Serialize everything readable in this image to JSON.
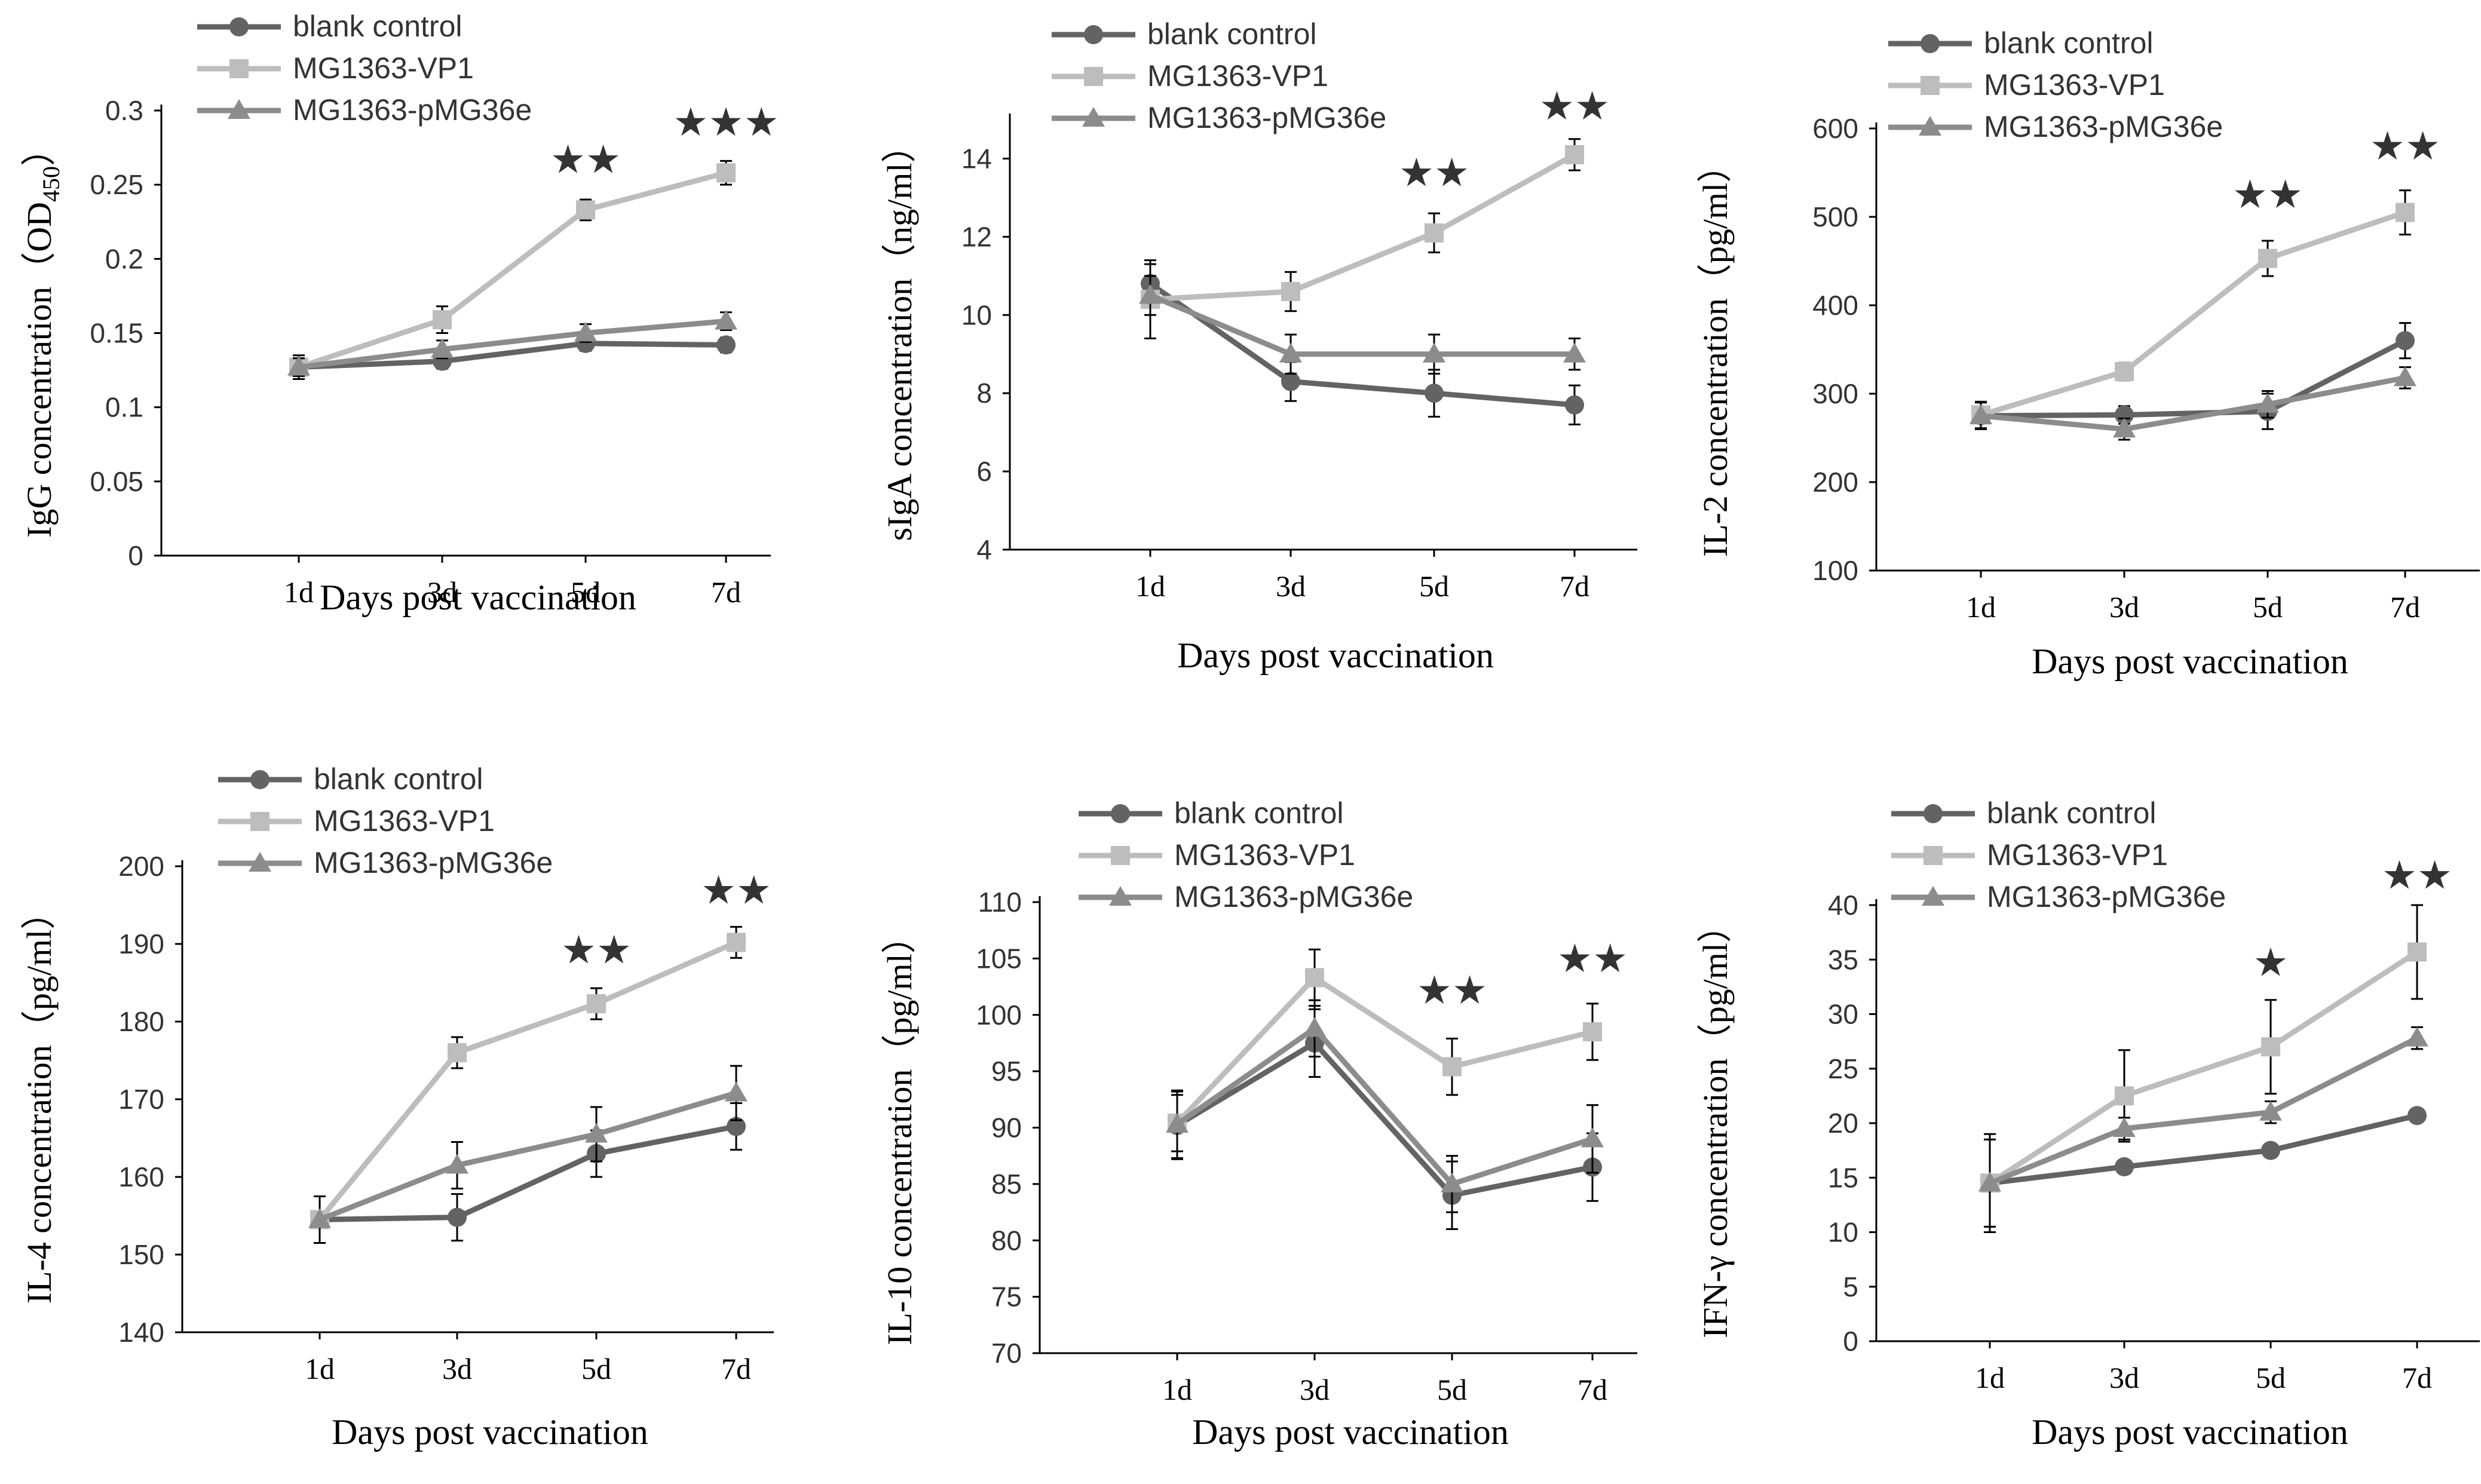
{
  "series_colors": {
    "blank control": "#636363",
    "MG1363-VP1": "#bdbdbd",
    "MG1363-pMG36e": "#8c8c8c"
  },
  "chart_data": [
    {
      "type": "line",
      "categories": [
        "1d",
        "3d",
        "5d",
        "7d"
      ],
      "xlabel": "Days post vaccination",
      "ylabel": "IgG concentration（OD",
      "ylabel_sub": "450",
      "ylabel_end": "）",
      "ylim": [
        0,
        0.3
      ],
      "yticks": [
        0,
        0.05,
        0.1,
        0.15,
        0.2,
        0.25,
        0.3
      ],
      "ytick_labels": [
        "0",
        "0.05",
        "0.1",
        "0.15",
        "0.2",
        "0.25",
        "0.3"
      ],
      "legend": [
        "blank control",
        "MG1363-VP1",
        "MG1363-pMG36e"
      ],
      "series": [
        {
          "name": "blank control",
          "marker": "circle",
          "values": [
            0.127,
            0.131,
            0.143,
            0.142
          ],
          "errors": [
            0.008,
            0.005,
            0.005,
            0.005
          ]
        },
        {
          "name": "MG1363-VP1",
          "marker": "square",
          "values": [
            0.127,
            0.159,
            0.233,
            0.258
          ],
          "errors": [
            0.006,
            0.009,
            0.007,
            0.008
          ]
        },
        {
          "name": "MG1363-pMG36e",
          "marker": "triangle",
          "values": [
            0.127,
            0.139,
            0.15,
            0.158
          ],
          "errors": [
            0.006,
            0.006,
            0.006,
            0.006
          ]
        }
      ],
      "annotations": [
        {
          "category": "5d",
          "text": "★★",
          "y": 0.258
        },
        {
          "category": "7d",
          "text": "★★★",
          "y": 0.283
        }
      ]
    },
    {
      "type": "line",
      "categories": [
        "1d",
        "3d",
        "5d",
        "7d"
      ],
      "xlabel": "Days post vaccination",
      "ylabel": "sIgA concentration（ng/ml）",
      "ylim": [
        4,
        15
      ],
      "yticks": [
        4,
        6,
        8,
        10,
        12,
        14
      ],
      "ytick_labels": [
        "4",
        "6",
        "8",
        "10",
        "12",
        "14"
      ],
      "legend": [
        "blank control",
        "MG1363-VP1",
        "MG1363-pMG36e"
      ],
      "series": [
        {
          "name": "blank control",
          "marker": "circle",
          "values": [
            10.8,
            8.3,
            8.0,
            7.7
          ],
          "errors": [
            0.5,
            0.5,
            0.6,
            0.5
          ]
        },
        {
          "name": "MG1363-VP1",
          "marker": "square",
          "values": [
            10.4,
            10.6,
            12.1,
            14.1
          ],
          "errors": [
            1.0,
            0.5,
            0.5,
            0.4
          ]
        },
        {
          "name": "MG1363-pMG36e",
          "marker": "triangle",
          "values": [
            10.5,
            9.0,
            9.0,
            9.0
          ],
          "errors": [
            0.5,
            0.5,
            0.5,
            0.4
          ]
        }
      ],
      "annotations": [
        {
          "category": "5d",
          "text": "★★",
          "y": 13.3
        },
        {
          "category": "7d",
          "text": "★★",
          "y": 15.0
        }
      ]
    },
    {
      "type": "line",
      "categories": [
        "1d",
        "3d",
        "5d",
        "7d"
      ],
      "xlabel": "Days post vaccination",
      "ylabel": "IL-2 concentration（pg/ml）",
      "ylim": [
        100,
        600
      ],
      "yticks": [
        100,
        200,
        300,
        400,
        500,
        600
      ],
      "ytick_labels": [
        "100",
        "200",
        "300",
        "400",
        "500",
        "600"
      ],
      "legend": [
        "blank control",
        "MG1363-VP1",
        "MG1363-pMG36e"
      ],
      "series": [
        {
          "name": "blank control",
          "marker": "circle",
          "values": [
            275,
            276,
            280,
            360
          ],
          "errors": [
            15,
            10,
            20,
            20
          ]
        },
        {
          "name": "MG1363-VP1",
          "marker": "square",
          "values": [
            276,
            325,
            453,
            505
          ],
          "errors": [
            15,
            10,
            20,
            25
          ]
        },
        {
          "name": "MG1363-pMG36e",
          "marker": "triangle",
          "values": [
            275,
            260,
            288,
            318
          ],
          "errors": [
            15,
            12,
            15,
            12
          ]
        }
      ],
      "annotations": [
        {
          "category": "5d",
          "text": "★★",
          "y": 510
        },
        {
          "category": "7d",
          "text": "★★",
          "y": 565
        }
      ]
    },
    {
      "type": "line",
      "categories": [
        "1d",
        "3d",
        "5d",
        "7d"
      ],
      "xlabel": "Days post vaccination",
      "ylabel": "IL-4 concentration（pg/ml）",
      "ylim": [
        140,
        200
      ],
      "yticks": [
        140,
        150,
        160,
        170,
        180,
        190,
        200
      ],
      "ytick_labels": [
        "140",
        "150",
        "160",
        "170",
        "180",
        "190",
        "200"
      ],
      "legend": [
        "blank control",
        "MG1363-VP1",
        "MG1363-pMG36e"
      ],
      "series": [
        {
          "name": "blank control",
          "marker": "circle",
          "values": [
            154.5,
            154.8,
            163.0,
            166.5
          ],
          "errors": [
            3.0,
            3.0,
            3.0,
            3.0
          ]
        },
        {
          "name": "MG1363-VP1",
          "marker": "square",
          "values": [
            154.5,
            176.0,
            182.3,
            190.2
          ],
          "errors": [
            3.0,
            2.0,
            2.0,
            2.0
          ]
        },
        {
          "name": "MG1363-pMG36e",
          "marker": "triangle",
          "values": [
            154.5,
            161.5,
            165.5,
            170.8
          ],
          "errors": [
            3.0,
            3.0,
            3.5,
            3.5
          ]
        }
      ],
      "annotations": [
        {
          "category": "5d",
          "text": "★★",
          "y": 187.5
        },
        {
          "category": "7d",
          "text": "★★",
          "y": 195.2
        }
      ]
    },
    {
      "type": "line",
      "categories": [
        "1d",
        "3d",
        "5d",
        "7d"
      ],
      "xlabel": "Days post vaccination",
      "ylabel": "IL-10 concentration（pg/ml）",
      "ylim": [
        70,
        110
      ],
      "yticks": [
        70,
        75,
        80,
        85,
        90,
        95,
        100,
        105,
        110
      ],
      "ytick_labels": [
        "70",
        "75",
        "80",
        "85",
        "90",
        "95",
        "100",
        "105",
        "110"
      ],
      "legend": [
        "blank control",
        "MG1363-VP1",
        "MG1363-pMG36e"
      ],
      "series": [
        {
          "name": "blank control",
          "marker": "circle",
          "values": [
            90.2,
            97.5,
            84.0,
            86.5
          ],
          "errors": [
            3.0,
            3.0,
            3.0,
            3.0
          ]
        },
        {
          "name": "MG1363-VP1",
          "marker": "square",
          "values": [
            90.4,
            103.3,
            95.4,
            98.5
          ],
          "errors": [
            2.5,
            2.5,
            2.5,
            2.5
          ]
        },
        {
          "name": "MG1363-pMG36e",
          "marker": "triangle",
          "values": [
            90.3,
            98.8,
            85.0,
            89.0
          ],
          "errors": [
            3.0,
            2.5,
            2.5,
            3.0
          ]
        }
      ],
      "annotations": [
        {
          "category": "5d",
          "text": "★★",
          "y": 101.0
        },
        {
          "category": "7d",
          "text": "★★",
          "y": 103.8
        }
      ]
    },
    {
      "type": "line",
      "categories": [
        "1d",
        "3d",
        "5d",
        "7d"
      ],
      "xlabel": "Days post vaccination",
      "ylabel": "IFN-γ concentration（pg/ml）",
      "ylim": [
        0,
        40
      ],
      "yticks": [
        0,
        5,
        10,
        15,
        20,
        25,
        30,
        35,
        40
      ],
      "ytick_labels": [
        "0",
        "5",
        "10",
        "15",
        "20",
        "25",
        "30",
        "35",
        "40"
      ],
      "legend": [
        "blank control",
        "MG1363-VP1",
        "MG1363-pMG36e"
      ],
      "series": [
        {
          "name": "blank control",
          "marker": "circle",
          "values": [
            14.5,
            16.0,
            17.5,
            20.7
          ],
          "errors": [
            4.5,
            0.5,
            0.5,
            0.5
          ]
        },
        {
          "name": "MG1363-VP1",
          "marker": "square",
          "values": [
            14.5,
            22.5,
            27.0,
            35.7
          ],
          "errors": [
            4.0,
            4.2,
            4.3,
            4.3
          ]
        },
        {
          "name": "MG1363-pMG36e",
          "marker": "triangle",
          "values": [
            14.5,
            19.5,
            21.0,
            27.8
          ],
          "errors": [
            4.0,
            1.0,
            1.0,
            1.0
          ]
        }
      ],
      "annotations": [
        {
          "category": "5d",
          "text": "★",
          "y": 33.5
        },
        {
          "category": "7d",
          "text": "★★",
          "y": 41.5
        }
      ]
    }
  ]
}
